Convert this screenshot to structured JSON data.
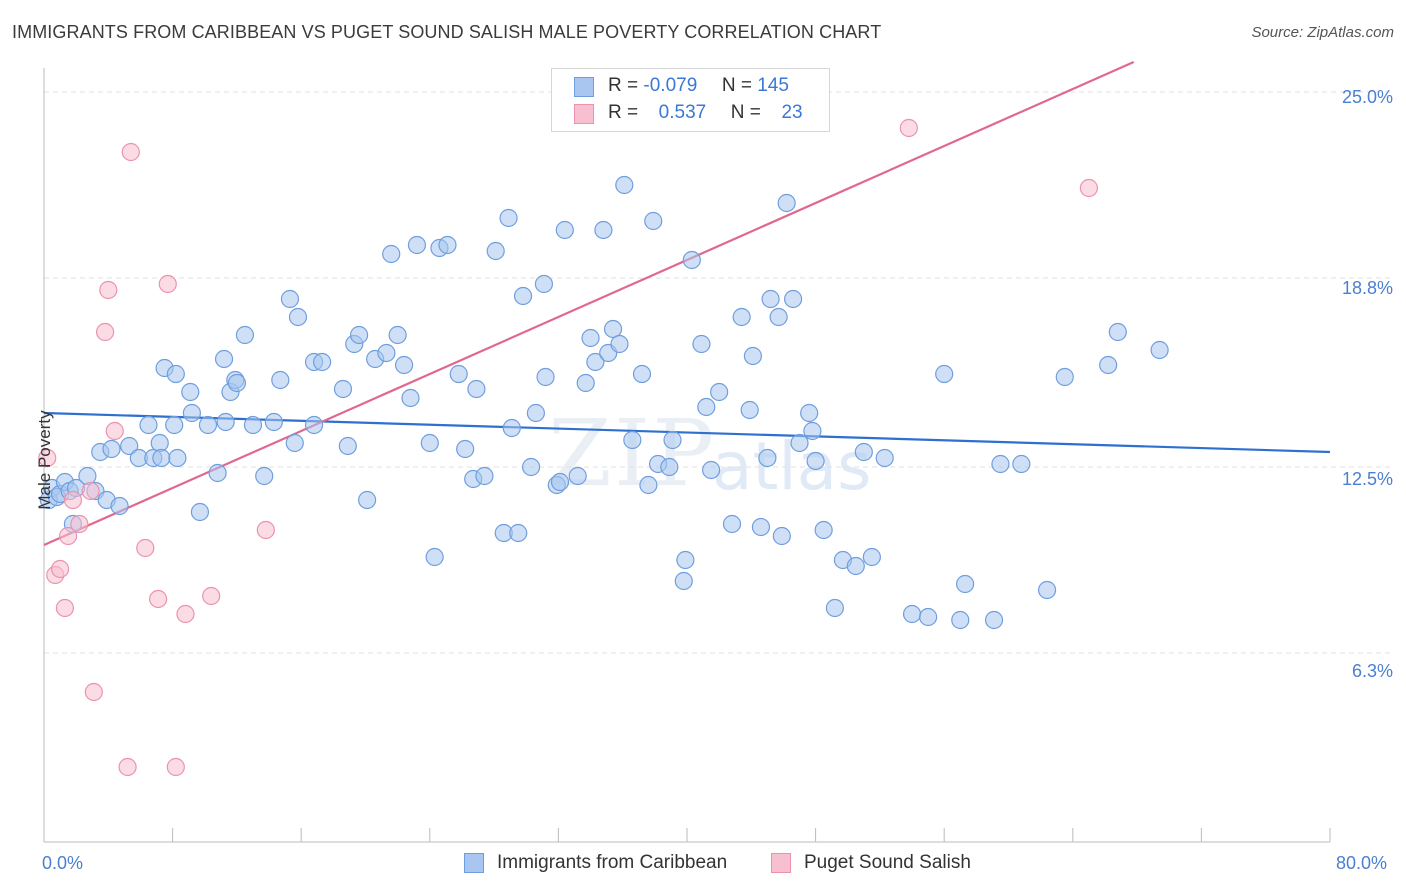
{
  "title": "IMMIGRANTS FROM CARIBBEAN VS PUGET SOUND SALISH MALE POVERTY CORRELATION CHART",
  "source": "Source: ZipAtlas.com",
  "watermark": {
    "zip": "ZIP",
    "atlas": "atlas"
  },
  "legend": {
    "series1": {
      "r_label": "R =",
      "r_value": "-0.079",
      "n_label": "N =",
      "n_value": "145"
    },
    "series2": {
      "r_label": "R =",
      "r_value": "0.537",
      "n_label": "N =",
      "n_value": "23"
    }
  },
  "bottom_legend": {
    "series1": "Immigrants from Caribbean",
    "series2": "Puget Sound Salish"
  },
  "colors": {
    "blue_fill": "#a8c6ef",
    "blue_stroke": "#6f9ede",
    "blue_line": "#2e6fd0",
    "pink_fill": "#f7bfd0",
    "pink_stroke": "#eb92ad",
    "pink_line": "#e0688f",
    "grid": "#e2e2e2",
    "axis": "#bbbbbb",
    "tick_text": "#4a7fd1"
  },
  "chart_data": {
    "type": "scatter",
    "title": "IMMIGRANTS FROM CARIBBEAN VS PUGET SOUND SALISH MALE POVERTY CORRELATION CHART",
    "xlabel": "",
    "ylabel": "Male Poverty",
    "xlim": [
      0,
      80
    ],
    "ylim": [
      0,
      26
    ],
    "x_tick_labels": [
      "0.0%",
      "80.0%"
    ],
    "y_ticks": [
      6.3,
      12.5,
      18.8,
      25.0
    ],
    "y_tick_labels": [
      "6.3%",
      "12.5%",
      "18.8%",
      "25.0%"
    ],
    "series": [
      {
        "name": "Immigrants from Caribbean",
        "trend": {
          "x": [
            0,
            80
          ],
          "y": [
            14.3,
            13.0
          ]
        },
        "points": [
          [
            0.3,
            11.4
          ],
          [
            0.5,
            11.8
          ],
          [
            0.8,
            11.5
          ],
          [
            1.0,
            11.6
          ],
          [
            1.3,
            12.0
          ],
          [
            1.6,
            11.7
          ],
          [
            1.8,
            10.6
          ],
          [
            2.0,
            11.8
          ],
          [
            2.7,
            12.2
          ],
          [
            3.2,
            11.7
          ],
          [
            3.5,
            13.0
          ],
          [
            3.9,
            11.4
          ],
          [
            4.2,
            13.1
          ],
          [
            4.7,
            11.2
          ],
          [
            5.3,
            13.2
          ],
          [
            5.9,
            12.8
          ],
          [
            6.5,
            13.9
          ],
          [
            6.8,
            12.8
          ],
          [
            7.2,
            13.3
          ],
          [
            7.3,
            12.8
          ],
          [
            7.5,
            15.8
          ],
          [
            8.1,
            13.9
          ],
          [
            8.2,
            15.6
          ],
          [
            8.3,
            12.8
          ],
          [
            9.2,
            14.3
          ],
          [
            9.1,
            15.0
          ],
          [
            9.7,
            11.0
          ],
          [
            10.2,
            13.9
          ],
          [
            10.8,
            12.3
          ],
          [
            11.3,
            14.0
          ],
          [
            11.2,
            16.1
          ],
          [
            11.6,
            15.0
          ],
          [
            11.9,
            15.4
          ],
          [
            12.0,
            15.3
          ],
          [
            12.5,
            16.9
          ],
          [
            13.0,
            13.9
          ],
          [
            13.7,
            12.2
          ],
          [
            14.3,
            14.0
          ],
          [
            14.7,
            15.4
          ],
          [
            15.3,
            18.1
          ],
          [
            15.6,
            13.3
          ],
          [
            15.8,
            17.5
          ],
          [
            16.8,
            16.0
          ],
          [
            16.8,
            13.9
          ],
          [
            17.3,
            16.0
          ],
          [
            18.6,
            15.1
          ],
          [
            18.9,
            13.2
          ],
          [
            19.3,
            16.6
          ],
          [
            19.6,
            16.9
          ],
          [
            20.1,
            11.4
          ],
          [
            20.6,
            16.1
          ],
          [
            21.3,
            16.3
          ],
          [
            21.6,
            19.6
          ],
          [
            22.0,
            16.9
          ],
          [
            22.4,
            15.9
          ],
          [
            22.8,
            14.8
          ],
          [
            23.2,
            19.9
          ],
          [
            24.0,
            13.3
          ],
          [
            24.3,
            9.5
          ],
          [
            24.6,
            19.8
          ],
          [
            25.1,
            19.9
          ],
          [
            25.8,
            15.6
          ],
          [
            26.2,
            13.1
          ],
          [
            26.7,
            12.1
          ],
          [
            26.9,
            15.1
          ],
          [
            27.4,
            12.2
          ],
          [
            28.1,
            19.7
          ],
          [
            28.6,
            10.3
          ],
          [
            28.9,
            20.8
          ],
          [
            29.1,
            13.8
          ],
          [
            29.5,
            10.3
          ],
          [
            29.8,
            18.2
          ],
          [
            30.3,
            12.5
          ],
          [
            30.6,
            14.3
          ],
          [
            31.1,
            18.6
          ],
          [
            31.2,
            15.5
          ],
          [
            31.9,
            11.9
          ],
          [
            32.1,
            12.0
          ],
          [
            32.4,
            20.4
          ],
          [
            33.2,
            12.2
          ],
          [
            33.7,
            15.3
          ],
          [
            34.0,
            16.8
          ],
          [
            34.3,
            16.0
          ],
          [
            34.8,
            20.4
          ],
          [
            35.1,
            16.3
          ],
          [
            35.4,
            17.1
          ],
          [
            35.8,
            16.6
          ],
          [
            36.1,
            21.9
          ],
          [
            36.6,
            13.4
          ],
          [
            37.2,
            15.6
          ],
          [
            37.6,
            11.9
          ],
          [
            37.9,
            20.7
          ],
          [
            38.2,
            12.6
          ],
          [
            38.9,
            12.5
          ],
          [
            39.1,
            13.4
          ],
          [
            39.8,
            8.7
          ],
          [
            39.9,
            9.4
          ],
          [
            40.3,
            19.4
          ],
          [
            40.9,
            16.6
          ],
          [
            41.2,
            14.5
          ],
          [
            41.5,
            12.4
          ],
          [
            42.0,
            15.0
          ],
          [
            42.8,
            10.6
          ],
          [
            43.4,
            17.5
          ],
          [
            43.9,
            14.4
          ],
          [
            44.1,
            16.2
          ],
          [
            44.6,
            10.5
          ],
          [
            45.0,
            12.8
          ],
          [
            45.2,
            18.1
          ],
          [
            45.7,
            17.5
          ],
          [
            45.9,
            10.2
          ],
          [
            46.2,
            21.3
          ],
          [
            46.6,
            18.1
          ],
          [
            47.0,
            13.3
          ],
          [
            47.6,
            14.3
          ],
          [
            47.8,
            13.7
          ],
          [
            48.0,
            12.7
          ],
          [
            48.5,
            10.4
          ],
          [
            49.2,
            7.8
          ],
          [
            49.7,
            9.4
          ],
          [
            50.5,
            9.2
          ],
          [
            51.0,
            13.0
          ],
          [
            51.5,
            9.5
          ],
          [
            52.3,
            12.8
          ],
          [
            54.0,
            7.6
          ],
          [
            55.0,
            7.5
          ],
          [
            56.0,
            15.6
          ],
          [
            57.0,
            7.4
          ],
          [
            57.3,
            8.6
          ],
          [
            59.1,
            7.4
          ],
          [
            59.5,
            12.6
          ],
          [
            60.8,
            12.6
          ],
          [
            62.4,
            8.4
          ],
          [
            63.5,
            15.5
          ],
          [
            66.2,
            15.9
          ],
          [
            66.8,
            17.0
          ],
          [
            69.4,
            16.4
          ]
        ]
      },
      {
        "name": "Puget Sound Salish",
        "trend": {
          "x": [
            0,
            80
          ],
          "y": [
            9.9,
            28.9
          ]
        },
        "points": [
          [
            0.2,
            12.8
          ],
          [
            0.7,
            8.9
          ],
          [
            1.0,
            9.1
          ],
          [
            1.3,
            7.8
          ],
          [
            1.5,
            10.2
          ],
          [
            1.8,
            11.4
          ],
          [
            2.2,
            10.6
          ],
          [
            2.9,
            11.7
          ],
          [
            3.1,
            5.0
          ],
          [
            3.8,
            17.0
          ],
          [
            4.0,
            18.4
          ],
          [
            4.4,
            13.7
          ],
          [
            5.2,
            2.5
          ],
          [
            5.4,
            23.0
          ],
          [
            6.3,
            9.8
          ],
          [
            7.1,
            8.1
          ],
          [
            7.7,
            18.6
          ],
          [
            8.2,
            2.5
          ],
          [
            8.8,
            7.6
          ],
          [
            10.4,
            8.2
          ],
          [
            13.8,
            10.4
          ],
          [
            53.8,
            23.8
          ],
          [
            65.0,
            21.8
          ]
        ]
      }
    ]
  }
}
